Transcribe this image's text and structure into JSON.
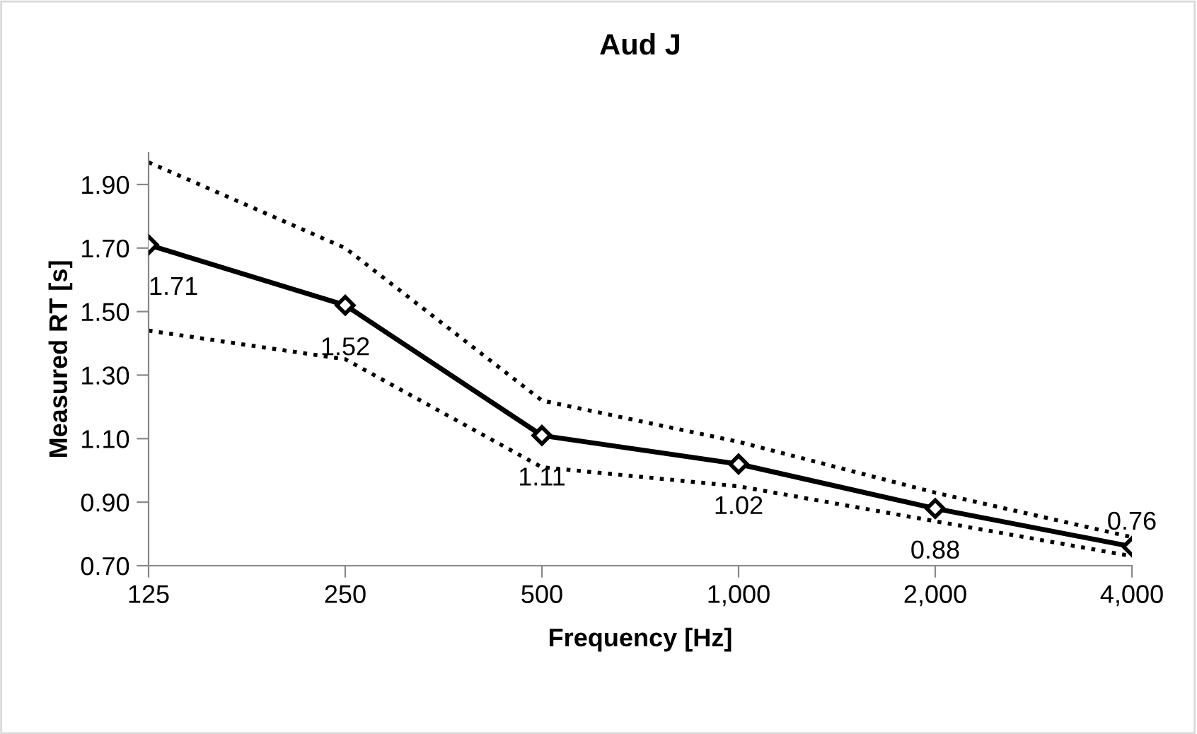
{
  "chart_data": {
    "type": "line",
    "title": "Aud J",
    "xlabel": "Frequency [Hz]",
    "ylabel": "Measured RT [s]",
    "categories": [
      "125",
      "250",
      "500",
      "1,000",
      "2,000",
      "4,000"
    ],
    "series": [
      {
        "color": "#000000",
        "values": [
          1.71,
          1.52,
          1.11,
          1.02,
          0.88,
          0.76
        ],
        "marker": "diamond",
        "line_style": "solid",
        "value_labels": [
          "1.71",
          "1.52",
          "1.11",
          "1.02",
          "0.88",
          "0.76"
        ]
      },
      {
        "color": "#000000",
        "values": [
          1.97,
          1.7,
          1.22,
          1.09,
          0.93,
          0.79
        ],
        "marker": "none",
        "line_style": "dotted"
      },
      {
        "color": "#000000",
        "values": [
          1.44,
          1.35,
          1.01,
          0.95,
          0.84,
          0.73
        ],
        "marker": "none",
        "line_style": "dotted"
      }
    ],
    "ylim": [
      0.7,
      2.0
    ],
    "yticks": [
      {
        "value": 0.7,
        "label": "0.70"
      },
      {
        "value": 0.9,
        "label": "0.90"
      },
      {
        "value": 1.1,
        "label": "1.10"
      },
      {
        "value": 1.3,
        "label": "1.30"
      },
      {
        "value": 1.5,
        "label": "1.50"
      },
      {
        "value": 1.7,
        "label": "1.70"
      },
      {
        "value": 1.9,
        "label": "1.90"
      }
    ],
    "grid": false,
    "legend": false
  }
}
